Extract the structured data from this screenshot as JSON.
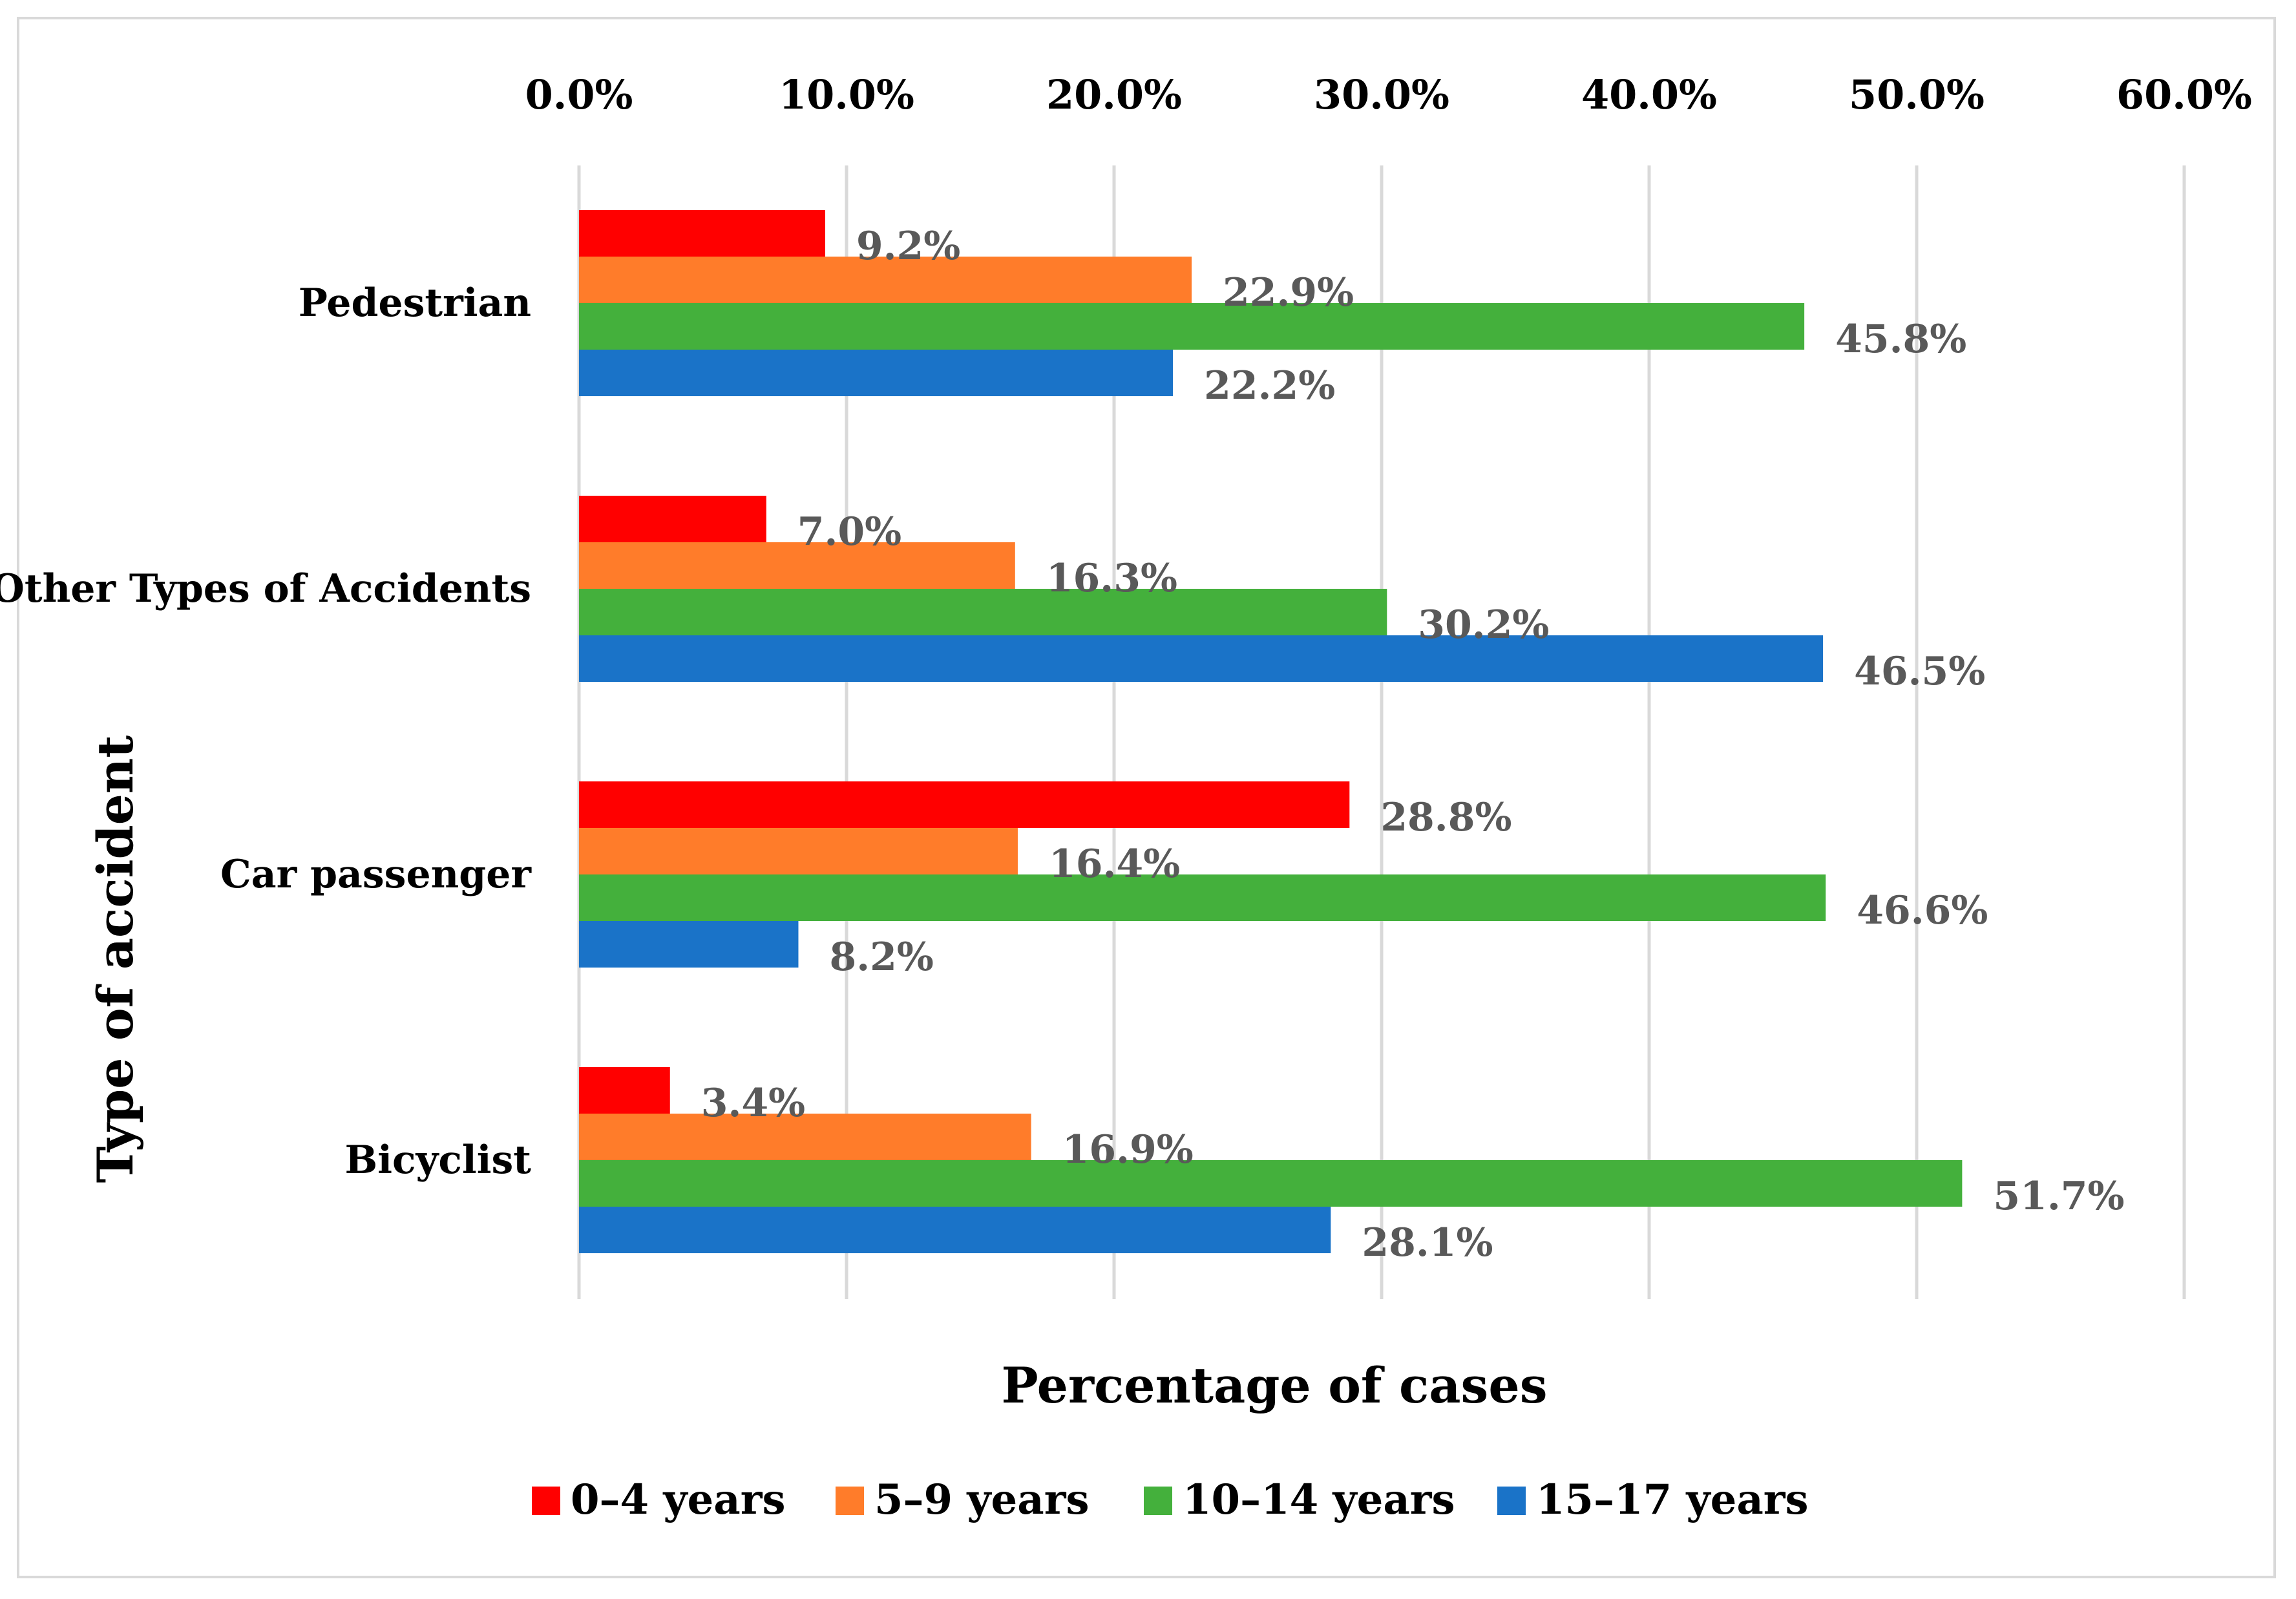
{
  "chart_data": {
    "type": "bar",
    "orientation": "horizontal",
    "title": "",
    "xlabel": "Percentage of cases",
    "ylabel": "Type of accident",
    "xlim": [
      0,
      60
    ],
    "x_ticks": [
      0,
      10,
      20,
      30,
      40,
      50,
      60
    ],
    "x_tick_labels": [
      "0.0%",
      "10.0%",
      "20.0%",
      "30.0%",
      "40.0%",
      "50.0%",
      "60.0%"
    ],
    "x_axis_position": "top",
    "grid": "vertical",
    "legend_position": "bottom",
    "categories": [
      "Pedestrian",
      "Other Types of Accidents",
      "Car passenger",
      "Bicyclist"
    ],
    "series": [
      {
        "name": "0–4 years",
        "color": "#ff0000",
        "values": [
          9.2,
          7.0,
          28.8,
          3.4
        ],
        "labels": [
          "9.2%",
          "7.0%",
          "28.8%",
          "3.4%"
        ]
      },
      {
        "name": "5–9 years",
        "color": "#ff7c2a",
        "values": [
          22.9,
          16.3,
          16.4,
          16.9
        ],
        "labels": [
          "22.9%",
          "16.3%",
          "16.4%",
          "16.9%"
        ]
      },
      {
        "name": "10–14 years",
        "color": "#44b03c",
        "values": [
          45.8,
          30.2,
          46.6,
          51.7
        ],
        "labels": [
          "45.8%",
          "30.2%",
          "46.6%",
          "51.7%"
        ]
      },
      {
        "name": "15–17 years",
        "color": "#1a73c8",
        "values": [
          22.2,
          46.5,
          8.2,
          28.1
        ],
        "labels": [
          "22.2%",
          "46.5%",
          "8.2%",
          "28.1%"
        ]
      }
    ]
  },
  "colors": {
    "grid": "#d9d9d9",
    "frame": "#d9d9d9",
    "data_label": "#595959"
  }
}
